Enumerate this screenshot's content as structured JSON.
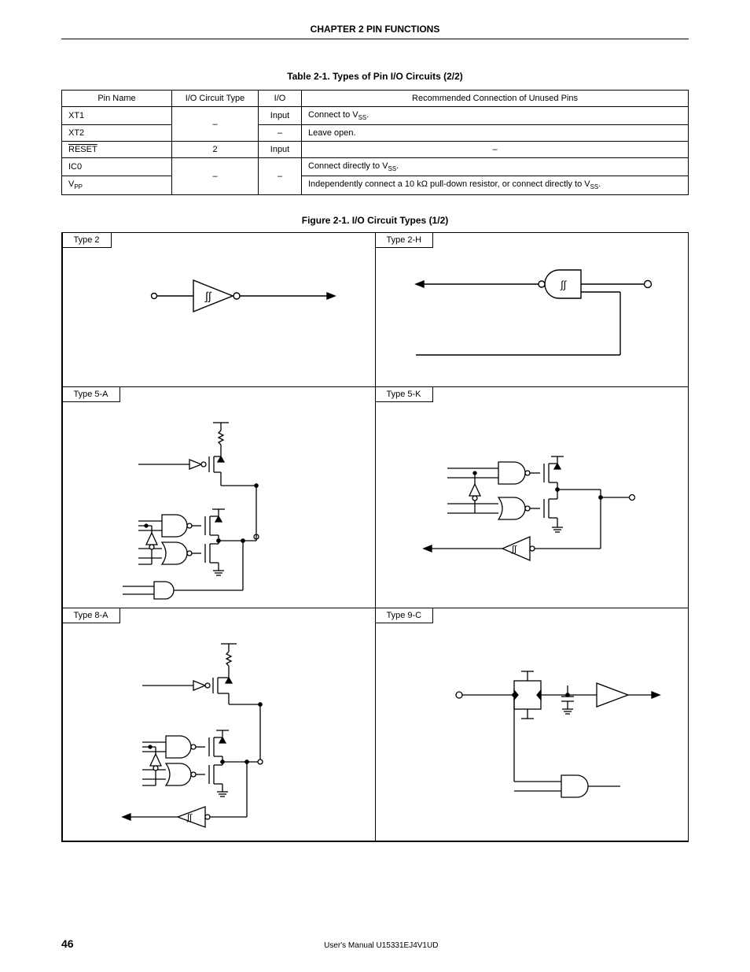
{
  "header": {
    "chapter": "CHAPTER  2   PIN  FUNCTIONS"
  },
  "table": {
    "title": "Table 2-1.  Types of Pin I/O Circuits (2/2)",
    "columns": [
      "Pin Name",
      "I/O Circuit Type",
      "I/O",
      "Recommended Connection of Unused Pins"
    ],
    "rows": [
      {
        "pin": "XT1",
        "type": "–",
        "io": "Input",
        "rec_html": "Connect to V<span class=\"sub\">SS</span>."
      },
      {
        "pin": "XT2",
        "type": "",
        "io": "–",
        "rec_html": "Leave open."
      },
      {
        "pin_html": "<span class=\"overline\">RESET</span>",
        "type": "2",
        "io": "Input",
        "rec_html": "–",
        "rec_center": true
      },
      {
        "pin": "IC0",
        "type": "–",
        "io": "–",
        "rec_html": "Connect directly to V<span class=\"sub\">SS</span>."
      },
      {
        "pin_html": "V<span class=\"sub\">PP</span>",
        "type": "",
        "io": "",
        "rec_html": "Independently connect a 10 kΩ pull-down resistor, or connect directly to V<span class=\"sub\">SS</span>."
      }
    ]
  },
  "figure": {
    "title": "Figure 2-1.  I/O Circuit Types (1/2)",
    "cells": [
      [
        {
          "label": "Type 2"
        },
        {
          "label": "Type 2-H"
        }
      ],
      [
        {
          "label": "Type 5-A"
        },
        {
          "label": "Type 5-K"
        }
      ],
      [
        {
          "label": "Type 8-A"
        },
        {
          "label": "Type 9-C"
        }
      ]
    ]
  },
  "footer": {
    "page": "46",
    "manual": "User's Manual  U15331EJ4V1UD"
  },
  "colors": {
    "stroke": "#000000",
    "bg": "#ffffff"
  }
}
